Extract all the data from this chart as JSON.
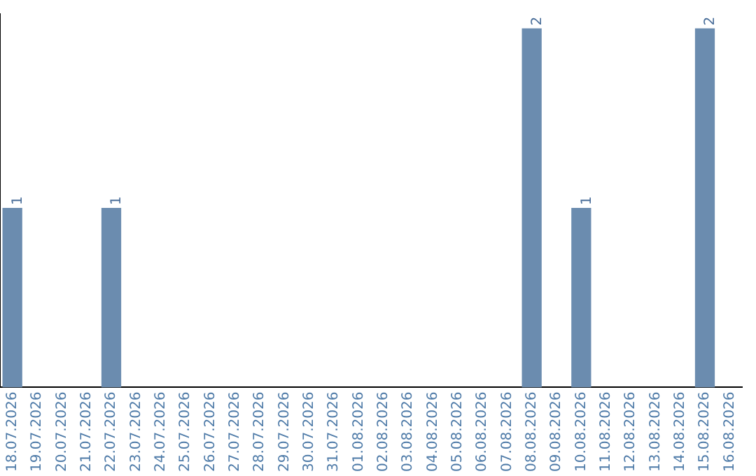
{
  "chart_data": {
    "type": "bar",
    "categories": [
      "18.07.2026",
      "19.07.2026",
      "20.07.2026",
      "21.07.2026",
      "22.07.2026",
      "23.07.2026",
      "24.07.2026",
      "25.07.2026",
      "26.07.2026",
      "27.07.2026",
      "28.07.2026",
      "29.07.2026",
      "30.07.2026",
      "31.07.2026",
      "01.08.2026",
      "02.08.2026",
      "03.08.2026",
      "04.08.2026",
      "05.08.2026",
      "06.08.2026",
      "07.08.2026",
      "08.08.2026",
      "09.08.2026",
      "10.08.2026",
      "11.08.2026",
      "12.08.2026",
      "13.08.2026",
      "14.08.2026",
      "15.08.2026",
      "16.08.2026"
    ],
    "values": [
      1,
      0,
      0,
      0,
      1,
      0,
      0,
      0,
      0,
      0,
      0,
      0,
      0,
      0,
      0,
      0,
      0,
      0,
      0,
      0,
      0,
      2,
      0,
      1,
      0,
      0,
      0,
      0,
      2,
      0
    ],
    "value_labels": [
      "1",
      null,
      null,
      null,
      "1",
      null,
      null,
      null,
      null,
      null,
      null,
      null,
      null,
      null,
      null,
      null,
      null,
      null,
      null,
      null,
      null,
      "2",
      null,
      "1",
      null,
      null,
      null,
      null,
      "2",
      null
    ],
    "color": "#6b8caf",
    "ylim": [
      0,
      2.08
    ],
    "grid": false,
    "legend": false,
    "tick_labels": "x"
  }
}
